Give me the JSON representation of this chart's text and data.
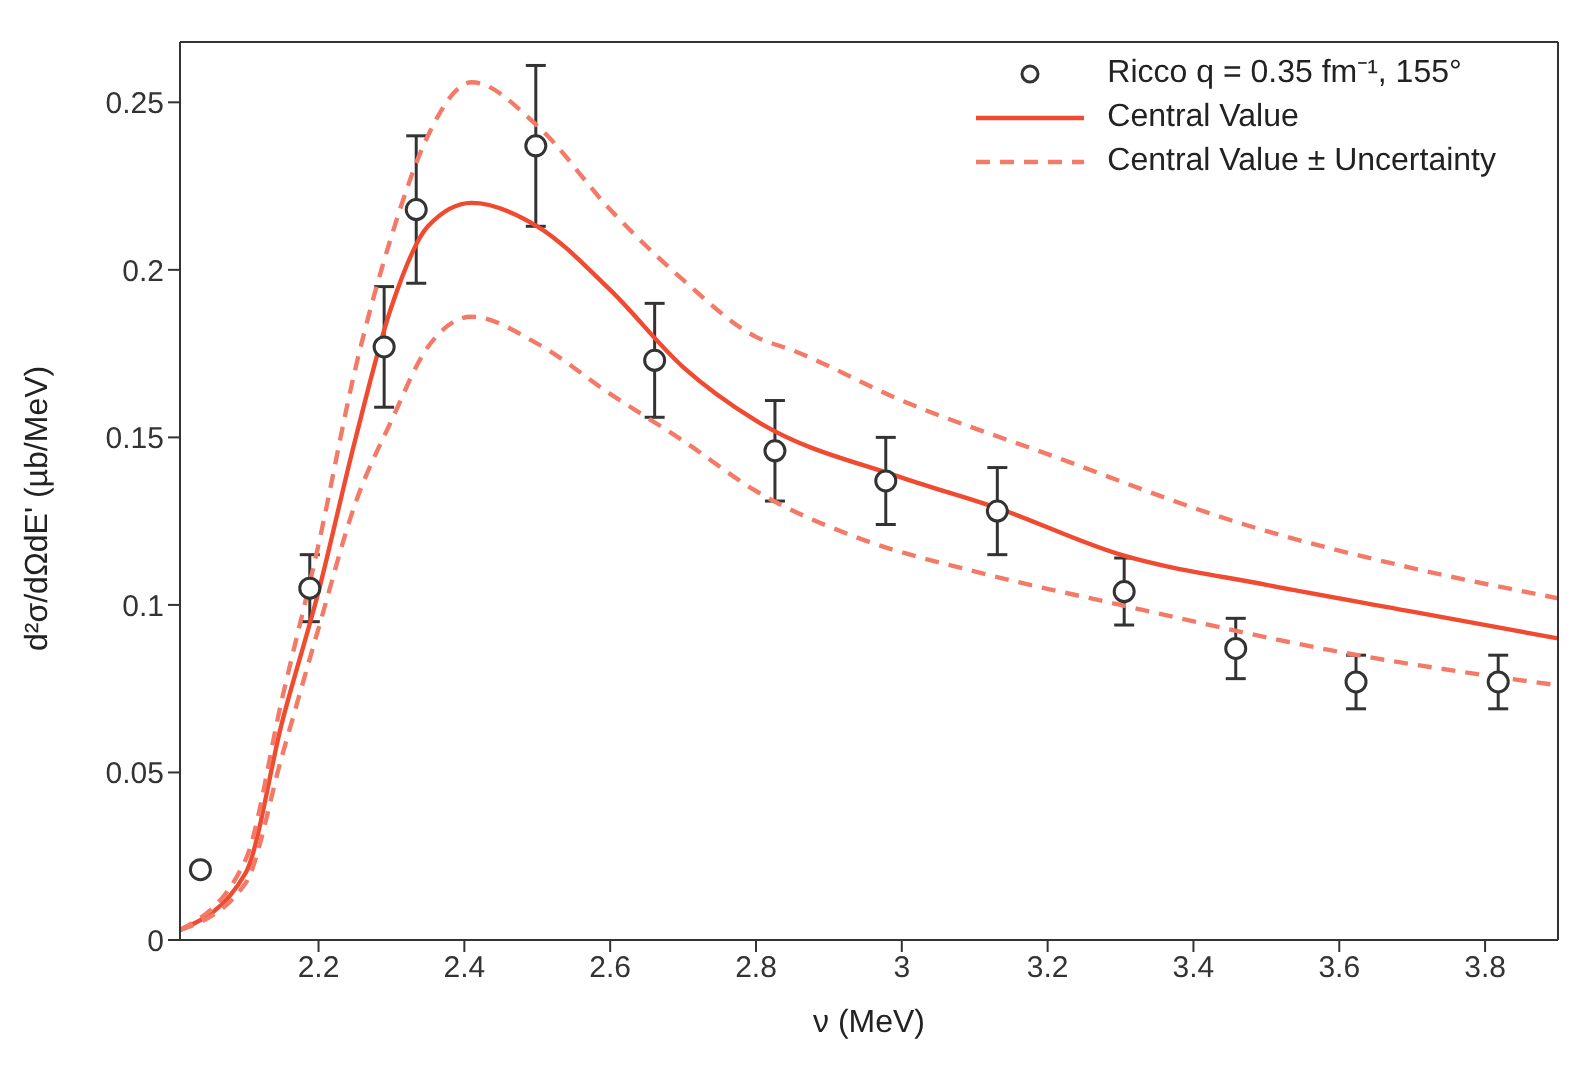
{
  "chart_data": {
    "type": "line",
    "xlabel": "ν (MeV)",
    "ylabel": "d²σ/dΩdE' (µb/MeV)",
    "xlim": [
      2.01,
      3.9
    ],
    "xticks": [
      2.2,
      2.4,
      2.6,
      2.8,
      3,
      3.2,
      3.4,
      3.6,
      3.8
    ],
    "ylim": [
      0,
      0.268
    ],
    "yticks": [
      0,
      0.05,
      0.1,
      0.15,
      0.2,
      0.25
    ],
    "legend": "top right",
    "series": [
      {
        "name": "Ricco q = 0.35 fm⁻¹, 155°",
        "type": "scatter",
        "marker": "circle",
        "color": "#333333",
        "x": [
          2.038,
          2.188,
          2.29,
          2.334,
          2.498,
          2.661,
          2.826,
          2.978,
          3.131,
          3.305,
          3.458,
          3.623,
          3.818
        ],
        "values": [
          0.021,
          0.105,
          0.177,
          0.218,
          0.237,
          0.173,
          0.146,
          0.137,
          0.128,
          0.104,
          0.087,
          0.077,
          0.077
        ],
        "errors": [
          null,
          0.01,
          0.018,
          0.022,
          0.024,
          0.017,
          0.015,
          0.013,
          0.013,
          0.01,
          0.009,
          0.008,
          0.008
        ]
      },
      {
        "name": "Central Value",
        "line_style": "solid",
        "marker": "none",
        "color": "#f04a30",
        "x": [
          2.01,
          2.1,
          2.15,
          2.2,
          2.25,
          2.3,
          2.35,
          2.41,
          2.5,
          2.6,
          2.7,
          2.8,
          3.0,
          3.13,
          3.3,
          3.5,
          3.7,
          3.9
        ],
        "values": [
          0.003,
          0.02,
          0.065,
          0.104,
          0.149,
          0.189,
          0.213,
          0.22,
          0.213,
          0.194,
          0.171,
          0.155,
          0.138,
          0.129,
          0.115,
          0.106,
          0.098,
          0.09
        ]
      },
      {
        "name": "Central Value ± Uncertainty",
        "line_style": "dashed",
        "marker": "none",
        "color": "#f47a68",
        "x": [
          2.01,
          2.1,
          2.15,
          2.2,
          2.25,
          2.3,
          2.35,
          2.41,
          2.5,
          2.6,
          2.7,
          2.8,
          2.85,
          3.0,
          3.2,
          3.47,
          3.7,
          3.9
        ],
        "values": [
          0.003,
          0.024,
          0.072,
          0.118,
          0.17,
          0.21,
          0.24,
          0.256,
          0.243,
          0.218,
          0.197,
          0.18,
          0.176,
          0.161,
          0.145,
          0.124,
          0.111,
          0.102
        ]
      },
      {
        "line_style": "dashed",
        "marker": "none",
        "color": "#f47a68",
        "x": [
          2.01,
          2.1,
          2.15,
          2.2,
          2.25,
          2.3,
          2.35,
          2.41,
          2.5,
          2.6,
          2.7,
          2.8,
          2.94,
          3.1,
          3.3,
          3.6,
          3.9
        ],
        "values": [
          0.003,
          0.017,
          0.055,
          0.093,
          0.13,
          0.155,
          0.177,
          0.186,
          0.178,
          0.163,
          0.149,
          0.134,
          0.12,
          0.11,
          0.1,
          0.086,
          0.076
        ]
      }
    ]
  }
}
